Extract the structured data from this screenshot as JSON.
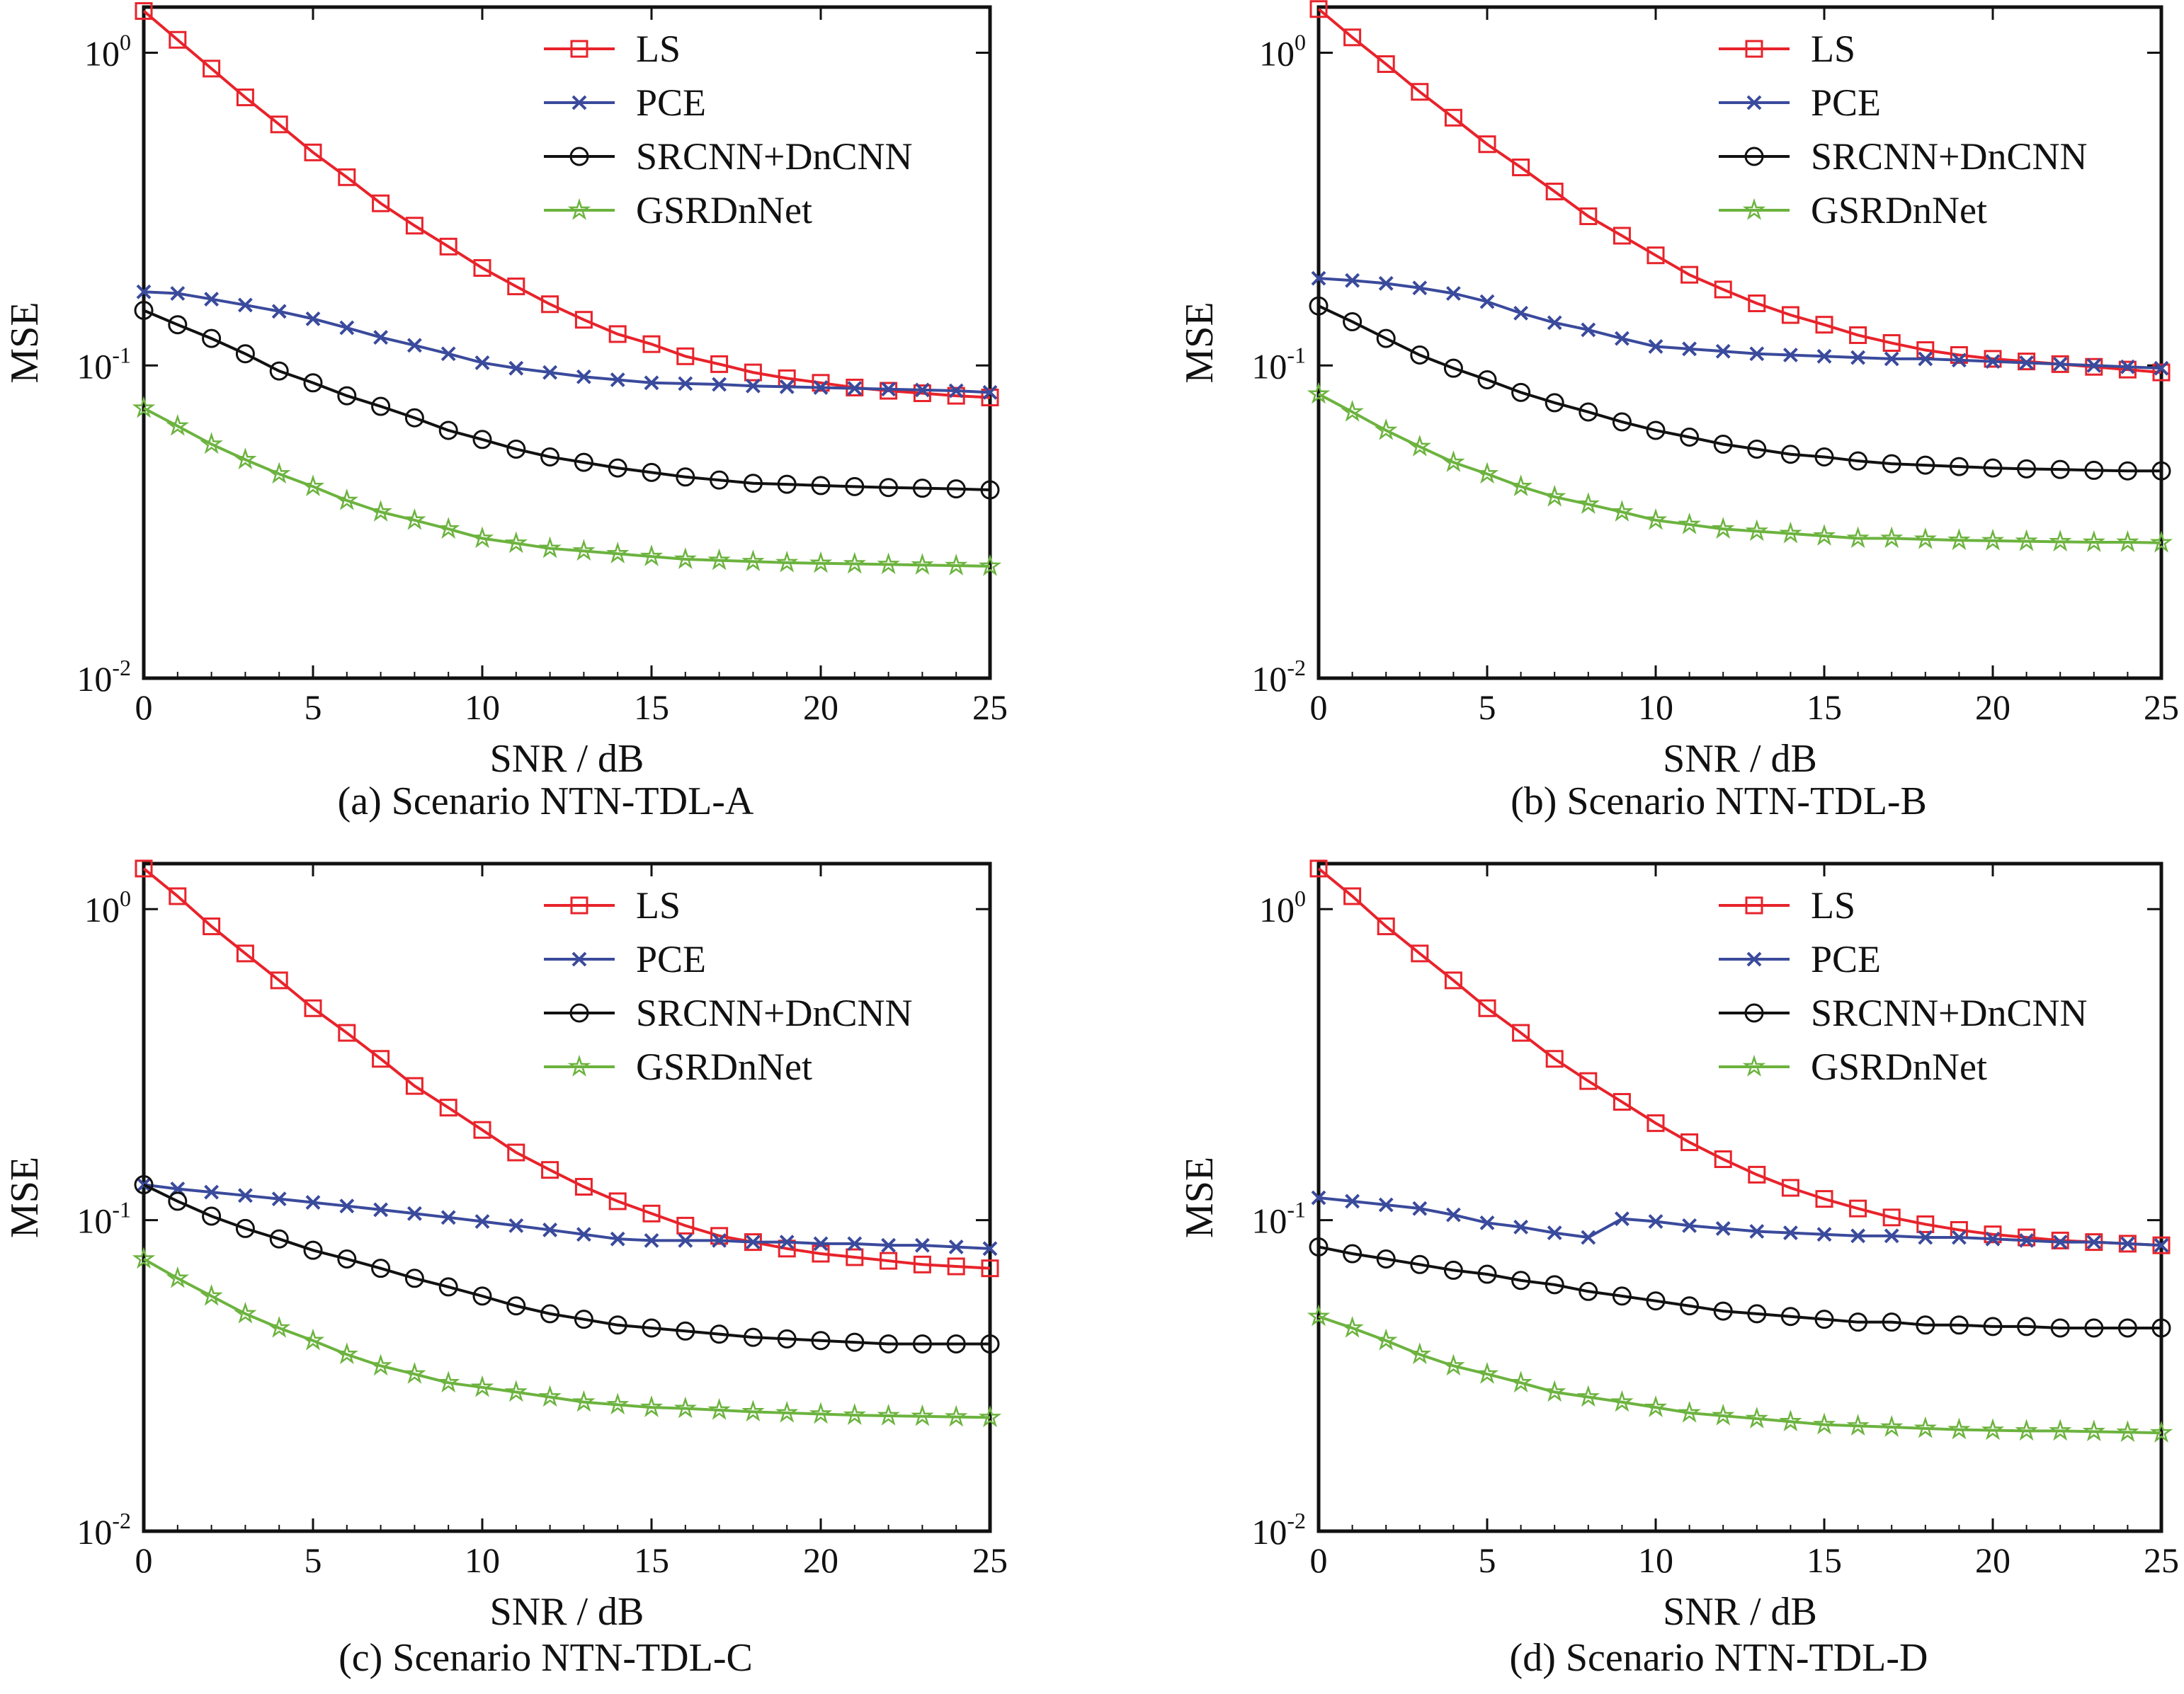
{
  "chart_data": [
    {
      "type": "line",
      "caption": "(a) Scenario NTN-TDL-A",
      "xlabel": "SNR / dB",
      "ylabel": "MSE",
      "yscale": "log",
      "xlim": [
        0,
        25
      ],
      "ylim": [
        0.01,
        1.4
      ],
      "xticks": [
        "0",
        "5",
        "10",
        "15",
        "20",
        "25"
      ],
      "yticks": [
        {
          "base": "10",
          "exp": "-2"
        },
        {
          "base": "10",
          "exp": "-1"
        },
        {
          "base": "10",
          "exp": "0"
        }
      ],
      "legend": "top-right",
      "grid": false,
      "x": [
        0,
        1,
        2,
        3,
        4,
        5,
        6,
        7,
        8,
        9,
        10,
        11,
        12,
        13,
        14,
        15,
        16,
        17,
        18,
        19,
        20,
        21,
        22,
        23,
        24,
        25
      ],
      "series": [
        {
          "name": "LS",
          "color": "#e8232b",
          "marker": "square",
          "values": [
            1.36,
            1.1,
            0.89,
            0.72,
            0.59,
            0.48,
            0.4,
            0.33,
            0.28,
            0.24,
            0.205,
            0.179,
            0.157,
            0.14,
            0.126,
            0.117,
            0.107,
            0.101,
            0.095,
            0.091,
            0.088,
            0.085,
            0.083,
            0.0815,
            0.08,
            0.079
          ]
        },
        {
          "name": "PCE",
          "color": "#3a4a9c",
          "marker": "x",
          "values": [
            0.172,
            0.17,
            0.163,
            0.156,
            0.149,
            0.141,
            0.132,
            0.123,
            0.116,
            0.109,
            0.102,
            0.098,
            0.095,
            0.092,
            0.09,
            0.088,
            0.0875,
            0.087,
            0.086,
            0.0855,
            0.085,
            0.0845,
            0.084,
            0.0835,
            0.083,
            0.082
          ]
        },
        {
          "name": "SRCNN+DnCNN",
          "color": "#111111",
          "marker": "circle",
          "values": [
            0.15,
            0.135,
            0.122,
            0.109,
            0.096,
            0.088,
            0.08,
            0.074,
            0.068,
            0.062,
            0.058,
            0.054,
            0.051,
            0.049,
            0.047,
            0.0455,
            0.044,
            0.043,
            0.042,
            0.0417,
            0.0413,
            0.041,
            0.0407,
            0.0405,
            0.0403,
            0.04
          ]
        },
        {
          "name": "GSRDnNet",
          "color": "#6cb33f",
          "marker": "star",
          "values": [
            0.073,
            0.064,
            0.056,
            0.05,
            0.045,
            0.041,
            0.037,
            0.034,
            0.032,
            0.03,
            0.028,
            0.027,
            0.026,
            0.0255,
            0.025,
            0.0245,
            0.024,
            0.0238,
            0.0236,
            0.0234,
            0.0233,
            0.0232,
            0.0231,
            0.023,
            0.0229,
            0.0228
          ]
        }
      ]
    },
    {
      "type": "line",
      "caption": "(b) Scenario NTN-TDL-B",
      "xlabel": "SNR / dB",
      "ylabel": "MSE",
      "yscale": "log",
      "xlim": [
        0,
        25
      ],
      "ylim": [
        0.01,
        1.4
      ],
      "xticks": [
        "0",
        "5",
        "10",
        "15",
        "20",
        "25"
      ],
      "yticks": [
        {
          "base": "10",
          "exp": "-2"
        },
        {
          "base": "10",
          "exp": "-1"
        },
        {
          "base": "10",
          "exp": "0"
        }
      ],
      "legend": "top-right",
      "grid": false,
      "x": [
        0,
        1,
        2,
        3,
        4,
        5,
        6,
        7,
        8,
        9,
        10,
        11,
        12,
        13,
        14,
        15,
        16,
        17,
        18,
        19,
        20,
        21,
        22,
        23,
        24,
        25
      ],
      "series": [
        {
          "name": "LS",
          "color": "#e8232b",
          "marker": "square",
          "values": [
            1.38,
            1.12,
            0.92,
            0.75,
            0.62,
            0.51,
            0.43,
            0.36,
            0.3,
            0.26,
            0.225,
            0.195,
            0.175,
            0.158,
            0.145,
            0.135,
            0.125,
            0.118,
            0.112,
            0.108,
            0.105,
            0.103,
            0.101,
            0.099,
            0.097,
            0.095
          ]
        },
        {
          "name": "PCE",
          "color": "#3a4a9c",
          "marker": "x",
          "values": [
            0.19,
            0.187,
            0.183,
            0.177,
            0.17,
            0.16,
            0.147,
            0.137,
            0.13,
            0.122,
            0.115,
            0.113,
            0.111,
            0.109,
            0.108,
            0.107,
            0.106,
            0.105,
            0.105,
            0.104,
            0.103,
            0.102,
            0.101,
            0.1,
            0.099,
            0.098
          ]
        },
        {
          "name": "SRCNN+DnCNN",
          "color": "#111111",
          "marker": "circle",
          "values": [
            0.155,
            0.138,
            0.122,
            0.108,
            0.098,
            0.09,
            0.082,
            0.076,
            0.071,
            0.066,
            0.062,
            0.059,
            0.056,
            0.054,
            0.052,
            0.051,
            0.0495,
            0.0485,
            0.048,
            0.0475,
            0.047,
            0.0467,
            0.0465,
            0.0462,
            0.046,
            0.046
          ]
        },
        {
          "name": "GSRDnNet",
          "color": "#6cb33f",
          "marker": "star",
          "values": [
            0.081,
            0.071,
            0.062,
            0.055,
            0.049,
            0.045,
            0.041,
            0.038,
            0.036,
            0.034,
            0.032,
            0.031,
            0.03,
            0.0295,
            0.029,
            0.0285,
            0.028,
            0.028,
            0.0278,
            0.0276,
            0.0275,
            0.0274,
            0.0273,
            0.0272,
            0.0272,
            0.0271
          ]
        }
      ]
    },
    {
      "type": "line",
      "caption": "(c) Scenario NTN-TDL-C",
      "xlabel": "SNR / dB",
      "ylabel": "MSE",
      "yscale": "log",
      "xlim": [
        0,
        25
      ],
      "ylim": [
        0.01,
        1.4
      ],
      "xticks": [
        "0",
        "5",
        "10",
        "15",
        "20",
        "25"
      ],
      "yticks": [
        {
          "base": "10",
          "exp": "-2"
        },
        {
          "base": "10",
          "exp": "-1"
        },
        {
          "base": "10",
          "exp": "0"
        }
      ],
      "legend": "top-right",
      "grid": false,
      "x": [
        0,
        1,
        2,
        3,
        4,
        5,
        6,
        7,
        8,
        9,
        10,
        11,
        12,
        13,
        14,
        15,
        16,
        17,
        18,
        19,
        20,
        21,
        22,
        23,
        24,
        25
      ],
      "series": [
        {
          "name": "LS",
          "color": "#e8232b",
          "marker": "square",
          "values": [
            1.35,
            1.1,
            0.88,
            0.72,
            0.59,
            0.48,
            0.4,
            0.33,
            0.27,
            0.23,
            0.195,
            0.165,
            0.145,
            0.128,
            0.115,
            0.105,
            0.096,
            0.089,
            0.085,
            0.081,
            0.078,
            0.076,
            0.074,
            0.072,
            0.071,
            0.07
          ]
        },
        {
          "name": "PCE",
          "color": "#3a4a9c",
          "marker": "x",
          "values": [
            0.13,
            0.126,
            0.123,
            0.12,
            0.117,
            0.114,
            0.111,
            0.108,
            0.105,
            0.102,
            0.099,
            0.096,
            0.093,
            0.09,
            0.087,
            0.086,
            0.086,
            0.086,
            0.085,
            0.085,
            0.084,
            0.084,
            0.083,
            0.083,
            0.082,
            0.081
          ]
        },
        {
          "name": "SRCNN+DnCNN",
          "color": "#111111",
          "marker": "circle",
          "values": [
            0.13,
            0.115,
            0.103,
            0.094,
            0.087,
            0.08,
            0.075,
            0.07,
            0.065,
            0.061,
            0.057,
            0.053,
            0.05,
            0.048,
            0.046,
            0.045,
            0.044,
            0.043,
            0.042,
            0.0415,
            0.041,
            0.0405,
            0.04,
            0.04,
            0.04,
            0.04
          ]
        },
        {
          "name": "GSRDnNet",
          "color": "#6cb33f",
          "marker": "star",
          "values": [
            0.075,
            0.065,
            0.057,
            0.05,
            0.045,
            0.041,
            0.037,
            0.034,
            0.032,
            0.03,
            0.029,
            0.028,
            0.027,
            0.026,
            0.0255,
            0.025,
            0.0248,
            0.0245,
            0.0242,
            0.024,
            0.0238,
            0.0236,
            0.0235,
            0.0234,
            0.0233,
            0.0232
          ]
        }
      ]
    },
    {
      "type": "line",
      "caption": "(d) Scenario NTN-TDL-D",
      "xlabel": "SNR / dB",
      "ylabel": "MSE",
      "yscale": "log",
      "xlim": [
        0,
        25
      ],
      "ylim": [
        0.01,
        1.4
      ],
      "xticks": [
        "0",
        "5",
        "10",
        "15",
        "20",
        "25"
      ],
      "yticks": [
        {
          "base": "10",
          "exp": "-2"
        },
        {
          "base": "10",
          "exp": "-1"
        },
        {
          "base": "10",
          "exp": "0"
        }
      ],
      "legend": "top-right",
      "grid": false,
      "x": [
        0,
        1,
        2,
        3,
        4,
        5,
        6,
        7,
        8,
        9,
        10,
        11,
        12,
        13,
        14,
        15,
        16,
        17,
        18,
        19,
        20,
        21,
        22,
        23,
        24,
        25
      ],
      "series": [
        {
          "name": "LS",
          "color": "#e8232b",
          "marker": "square",
          "values": [
            1.35,
            1.1,
            0.88,
            0.72,
            0.59,
            0.48,
            0.4,
            0.33,
            0.28,
            0.24,
            0.205,
            0.178,
            0.157,
            0.14,
            0.127,
            0.117,
            0.109,
            0.102,
            0.097,
            0.093,
            0.09,
            0.088,
            0.086,
            0.085,
            0.084,
            0.083
          ]
        },
        {
          "name": "PCE",
          "color": "#3a4a9c",
          "marker": "x",
          "values": [
            0.118,
            0.115,
            0.112,
            0.109,
            0.104,
            0.098,
            0.095,
            0.091,
            0.088,
            0.101,
            0.099,
            0.096,
            0.094,
            0.092,
            0.091,
            0.09,
            0.089,
            0.089,
            0.088,
            0.088,
            0.087,
            0.086,
            0.085,
            0.085,
            0.084,
            0.083
          ]
        },
        {
          "name": "SRCNN+DnCNN",
          "color": "#111111",
          "marker": "circle",
          "values": [
            0.082,
            0.078,
            0.075,
            0.072,
            0.069,
            0.067,
            0.064,
            0.062,
            0.059,
            0.057,
            0.055,
            0.053,
            0.051,
            0.05,
            0.049,
            0.048,
            0.047,
            0.047,
            0.046,
            0.046,
            0.0455,
            0.0455,
            0.045,
            0.045,
            0.045,
            0.045
          ]
        },
        {
          "name": "GSRDnNet",
          "color": "#6cb33f",
          "marker": "star",
          "values": [
            0.049,
            0.045,
            0.041,
            0.037,
            0.034,
            0.032,
            0.03,
            0.028,
            0.027,
            0.026,
            0.025,
            0.024,
            0.0235,
            0.023,
            0.0225,
            0.022,
            0.0218,
            0.0216,
            0.0214,
            0.0212,
            0.0211,
            0.021,
            0.021,
            0.0209,
            0.0208,
            0.0207
          ]
        }
      ]
    }
  ]
}
